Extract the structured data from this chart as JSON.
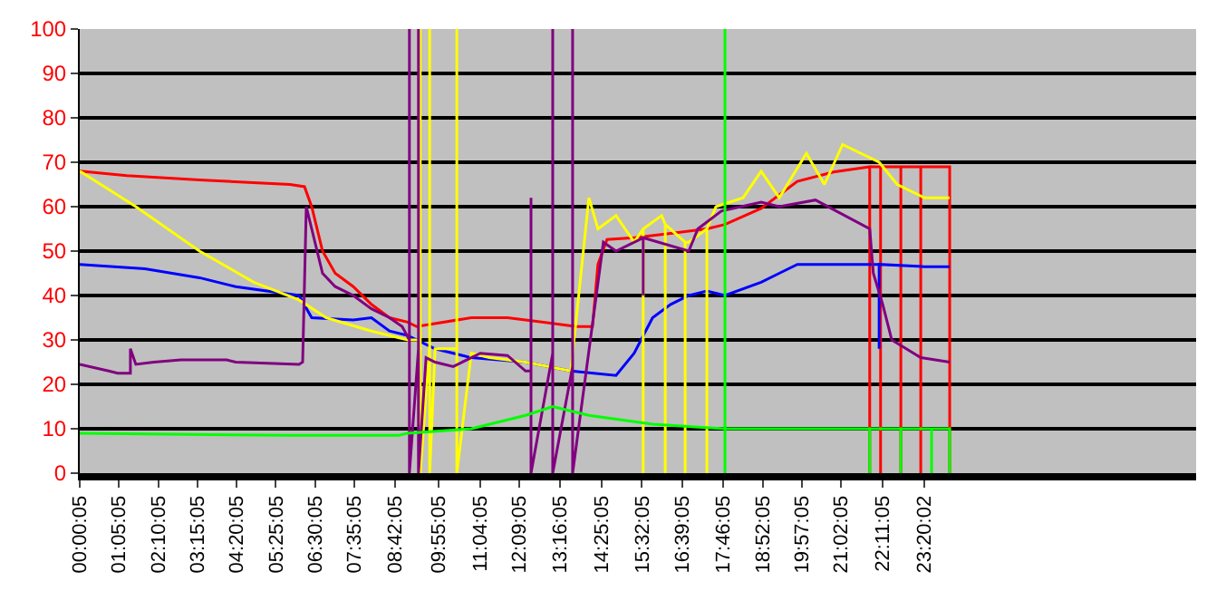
{
  "chart_data": {
    "type": "line",
    "marker": "none",
    "line_style": "solid",
    "grid": "y",
    "xlim": [
      0,
      30.85
    ],
    "ylim": [
      0,
      100
    ],
    "yticks": [
      0,
      10,
      20,
      30,
      40,
      50,
      60,
      70,
      80,
      90,
      100
    ],
    "xticks": [
      {
        "value": 0.0013889,
        "label": "00:00:05"
      },
      {
        "value": 1.0847222,
        "label": "01:05:05"
      },
      {
        "value": 2.1680556,
        "label": "02:10:05"
      },
      {
        "value": 3.2513889,
        "label": "03:15:05"
      },
      {
        "value": 4.3347222,
        "label": "04:20:05"
      },
      {
        "value": 5.4180556,
        "label": "05:25:05"
      },
      {
        "value": 6.5013889,
        "label": "06:30:05"
      },
      {
        "value": 7.5847222,
        "label": "07:35:05"
      },
      {
        "value": 8.7013889,
        "label": "08:42:05"
      },
      {
        "value": 9.9180556,
        "label": "09:55:05"
      },
      {
        "value": 11.0680556,
        "label": "11:04:05"
      },
      {
        "value": 12.1513889,
        "label": "12:09:05"
      },
      {
        "value": 13.2680556,
        "label": "13:16:05"
      },
      {
        "value": 14.4180556,
        "label": "14:25:05"
      },
      {
        "value": 15.5347222,
        "label": "15:32:05"
      },
      {
        "value": 16.6513889,
        "label": "16:39:05"
      },
      {
        "value": 17.7680556,
        "label": "17:46:05"
      },
      {
        "value": 18.8680556,
        "label": "18:52:05"
      },
      {
        "value": 19.9513889,
        "label": "19:57:05"
      },
      {
        "value": 21.0347222,
        "label": "21:02:05"
      },
      {
        "value": 22.1847222,
        "label": "22:11:05"
      },
      {
        "value": 23.3338889,
        "label": "23:20:02"
      }
    ],
    "series": [
      {
        "color": "#ff0000",
        "x": [
          0,
          1.3,
          3.31,
          5.81,
          6.21,
          6.41,
          6.71,
          7.06,
          7.56,
          8.06,
          8.56,
          9.06,
          9.31,
          10.82,
          11.82,
          12.82,
          13.72,
          14.17,
          14.32,
          14.57,
          15.32,
          16.33,
          17.33,
          17.83,
          18.83,
          19.83,
          20.83,
          21.83,
          21.83,
          21.83,
          22.13,
          22.13,
          22.13,
          22.69,
          22.69,
          22.69,
          23.24,
          23.24,
          23.24,
          24.04,
          24.04
        ],
        "values": [
          68,
          67,
          66,
          65,
          64.5,
          60,
          50,
          45,
          42,
          38,
          35,
          34,
          33,
          35,
          35,
          34,
          33,
          33,
          47,
          52.6,
          53,
          54,
          55,
          56,
          59.6,
          65.7,
          67.8,
          69,
          0,
          69,
          69,
          0,
          69,
          69,
          0,
          69,
          69,
          0,
          69,
          69,
          0
        ]
      },
      {
        "color": "#0000ff",
        "x": [
          0,
          1.8,
          3.31,
          4.31,
          6.06,
          6.41,
          7.56,
          8.06,
          8.56,
          9.06,
          9.82,
          10.82,
          12.32,
          13.57,
          14.82,
          15.32,
          15.83,
          16.33,
          16.83,
          17.33,
          17.83,
          18.83,
          19.33,
          19.83,
          22.09,
          22.09,
          22.09,
          23.34,
          24.04
        ],
        "values": [
          47,
          46,
          44,
          42,
          40,
          35,
          34.5,
          35,
          32,
          31,
          28,
          26,
          25,
          23,
          22,
          27,
          35,
          38,
          40,
          41,
          40,
          43,
          45,
          47,
          47,
          28,
          47,
          46.5,
          46.5
        ]
      },
      {
        "color": "#ffff00",
        "x": [
          0,
          1.55,
          3.31,
          4.81,
          6.06,
          6.81,
          8.06,
          9.06,
          9.41,
          9.41,
          9.41,
          9.67,
          9.67,
          9.67,
          9.82,
          10.42,
          10.42,
          10.42,
          10.82,
          11.32,
          12.32,
          13.57,
          14.07,
          14.32,
          14.82,
          15.32,
          15.57,
          15.57,
          15.57,
          16.08,
          16.18,
          16.18,
          16.18,
          16.73,
          16.73,
          16.73,
          16.83,
          17.33,
          17.33,
          17.33,
          17.58,
          18.33,
          18.83,
          19.33,
          20.08,
          20.58,
          21.08,
          22.09,
          22.59,
          23.34,
          24.04
        ],
        "values": [
          68,
          60,
          50,
          43,
          39,
          35,
          32,
          30,
          30,
          100,
          0,
          29,
          100,
          0,
          28,
          28,
          100,
          0,
          27,
          26,
          25,
          23,
          62,
          55,
          58,
          52,
          55,
          0,
          55,
          58,
          56,
          0,
          56,
          52,
          0,
          52,
          52,
          55,
          0,
          55,
          60,
          62,
          68,
          62,
          72,
          65,
          74,
          70,
          65,
          62,
          62
        ]
      },
      {
        "color": "#800080",
        "x": [
          0,
          0.8,
          1.05,
          1.4,
          1.4,
          1.55,
          2.05,
          2.8,
          4.06,
          4.31,
          6.06,
          6.16,
          6.26,
          6.41,
          6.71,
          7.06,
          7.56,
          8.06,
          8.56,
          8.91,
          9.11,
          9.11,
          9.11,
          9.36,
          9.36,
          9.36,
          9.57,
          9.82,
          10.32,
          11.07,
          11.82,
          12.32,
          12.47,
          12.47,
          12.47,
          13.07,
          13.07,
          13.07,
          13.62,
          13.62,
          13.62,
          14.47,
          14.82,
          15.57,
          15.57,
          15.57,
          16.83,
          17.08,
          17.73,
          18.83,
          19.33,
          20.33,
          21.83,
          21.93,
          22.19,
          22.44,
          22.84,
          23.24,
          24.04
        ],
        "values": [
          24.5,
          23,
          22.5,
          22.5,
          28,
          24.5,
          25,
          25.5,
          25.5,
          25,
          24.5,
          25,
          60,
          55,
          45,
          42,
          40,
          37,
          35,
          33,
          30,
          100,
          0,
          28,
          100,
          0,
          26,
          25,
          24,
          27,
          26.5,
          23,
          23,
          62,
          0,
          27,
          100,
          0,
          24,
          100,
          0,
          52,
          50,
          53,
          40,
          53,
          50,
          55,
          59,
          61,
          60,
          61.5,
          55,
          45,
          38,
          30,
          28,
          26,
          25
        ]
      },
      {
        "color": "#00ff00",
        "x": [
          0,
          5.81,
          8.81,
          9.06,
          10.82,
          12.32,
          13.07,
          14.07,
          15.83,
          17.83,
          17.83,
          17.83,
          17.83,
          21.83,
          21.83,
          21.83,
          22.69,
          22.69,
          22.69,
          23.54,
          23.54,
          23.54,
          24.04,
          24.04
        ],
        "values": [
          9,
          8.5,
          8.5,
          9,
          10,
          13,
          15,
          13,
          11,
          10,
          100,
          0,
          10,
          10,
          0,
          10,
          10,
          0,
          10,
          10,
          0,
          10,
          10,
          0
        ]
      }
    ]
  }
}
